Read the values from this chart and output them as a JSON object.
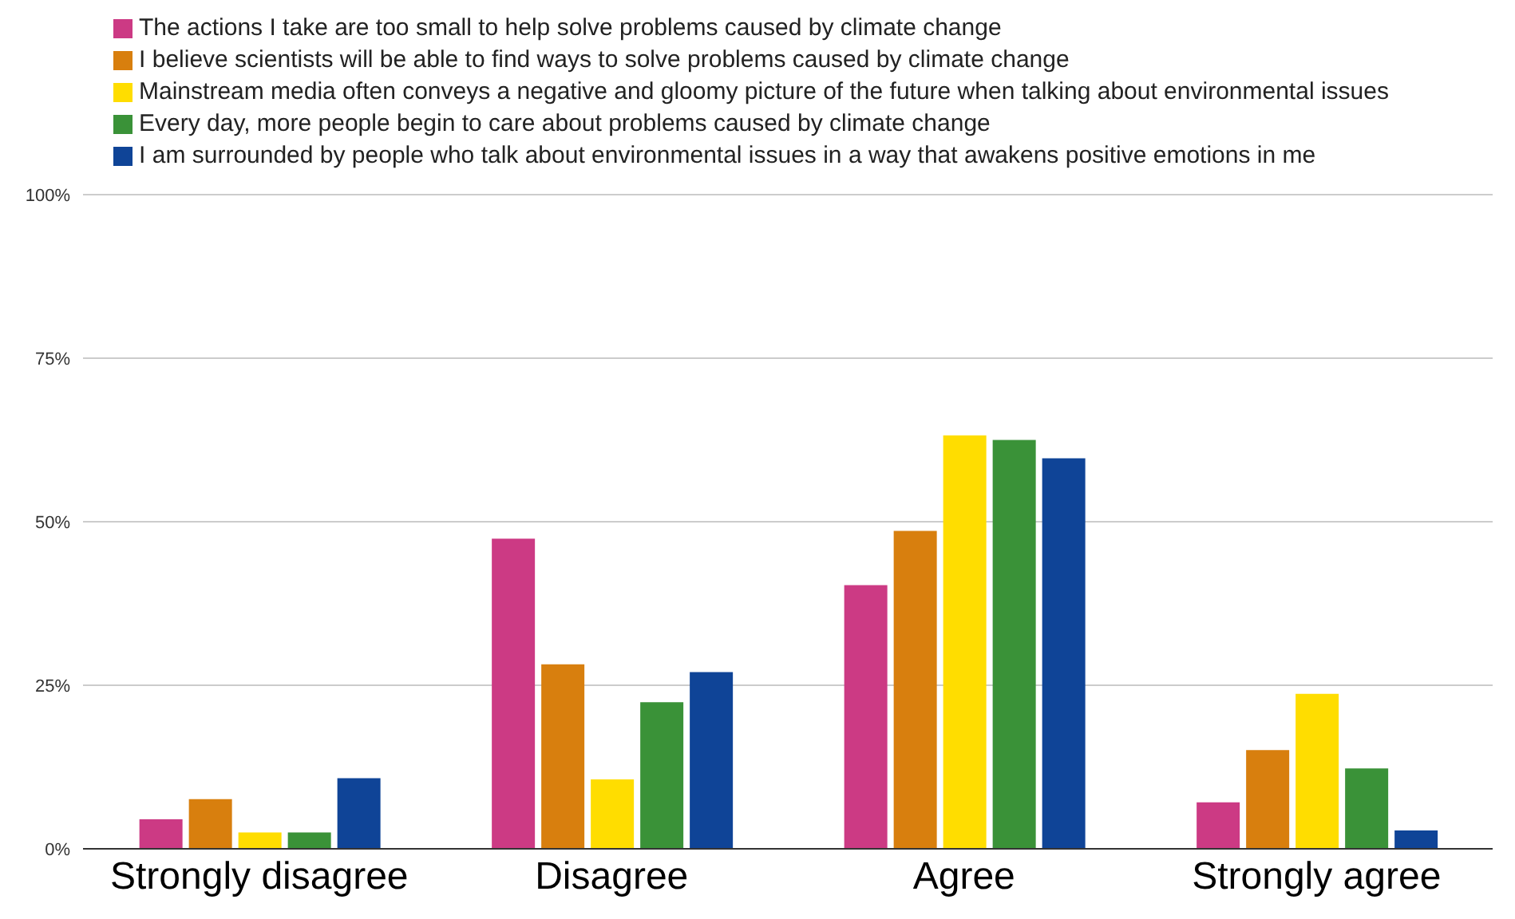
{
  "chart_data": {
    "type": "bar",
    "categories": [
      "Strongly disagree",
      "Disagree",
      "Agree",
      "Strongly agree"
    ],
    "series": [
      {
        "name": "The actions I take are too small to help solve problems caused by climate change",
        "color": "#cc3a84",
        "values": [
          4.5,
          47.4,
          40.3,
          7.1
        ]
      },
      {
        "name": "I believe scientists will be able to find ways to solve problems caused by climate change",
        "color": "#d87f0e",
        "values": [
          7.6,
          28.2,
          48.6,
          15.1
        ]
      },
      {
        "name": "Mainstream media often conveys a negative and gloomy picture of the future when talking about environmental issues",
        "color": "#ffdd00",
        "values": [
          2.5,
          10.6,
          63.2,
          23.7
        ]
      },
      {
        "name": "Every day, more people begin to care about problems caused by climate change",
        "color": "#3a9238",
        "values": [
          2.5,
          22.4,
          62.5,
          12.3
        ]
      },
      {
        "name": "I am surrounded by people who talk about environmental issues in a way that awakens positive emotions in me",
        "color": "#0f4497",
        "values": [
          10.8,
          27.0,
          59.7,
          2.8
        ]
      }
    ],
    "ylim": [
      0,
      100
    ],
    "yticks": [
      {
        "value": 0,
        "label": "0%"
      },
      {
        "value": 25,
        "label": "25%"
      },
      {
        "value": 50,
        "label": "50%"
      },
      {
        "value": 75,
        "label": "75%"
      },
      {
        "value": 100,
        "label": "100%"
      }
    ],
    "grid": "y",
    "legend": "top"
  }
}
